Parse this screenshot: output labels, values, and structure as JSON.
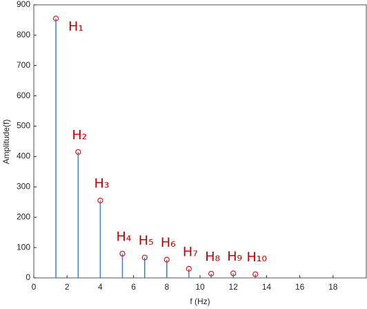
{
  "chart_data": {
    "type": "stem",
    "x_label": "f (Hz)",
    "y_label": "Amplitude(f)",
    "x": [
      1.33,
      2.67,
      4.0,
      5.33,
      6.67,
      8.0,
      9.33,
      10.67,
      12.0,
      13.33
    ],
    "values": [
      855,
      415,
      255,
      80,
      67,
      60,
      30,
      14,
      15,
      12
    ],
    "labels": [
      "H₁",
      "H₂",
      "H₃",
      "H₄",
      "H₅",
      "H₆",
      "H₇",
      "H₈",
      "H₉",
      "H₁₀"
    ],
    "stem_color": "#3b7fc4",
    "marker_color": "#d62728",
    "label_color": "#c00000",
    "xlim": [
      0,
      20
    ],
    "xticks": [
      0,
      2,
      4,
      6,
      8,
      10,
      12,
      14,
      16,
      18
    ],
    "ylim": [
      0,
      900
    ],
    "yticks": [
      0,
      100,
      200,
      300,
      400,
      500,
      600,
      700,
      800,
      900
    ]
  }
}
